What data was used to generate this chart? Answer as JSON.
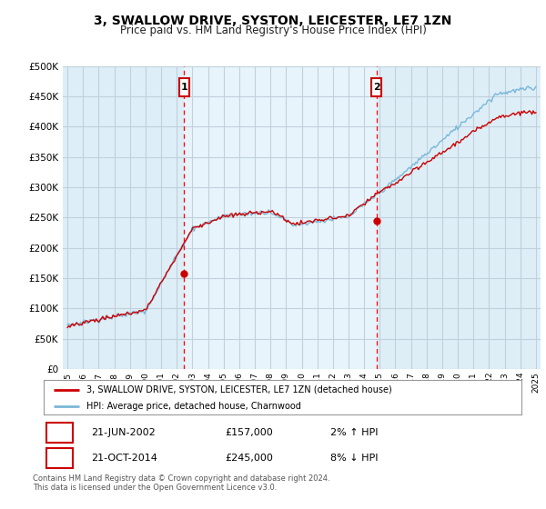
{
  "title": "3, SWALLOW DRIVE, SYSTON, LEICESTER, LE7 1ZN",
  "subtitle": "Price paid vs. HM Land Registry's House Price Index (HPI)",
  "ylabel_ticks": [
    "£0",
    "£50K",
    "£100K",
    "£150K",
    "£200K",
    "£250K",
    "£300K",
    "£350K",
    "£400K",
    "£450K",
    "£500K"
  ],
  "ytick_values": [
    0,
    50000,
    100000,
    150000,
    200000,
    250000,
    300000,
    350000,
    400000,
    450000,
    500000
  ],
  "x_start_year": 1995,
  "x_end_year": 2025,
  "hpi_color": "#7ab8d9",
  "price_color": "#cc0000",
  "vline_color": "red",
  "marker1": {
    "year": 2002.47,
    "value": 157000,
    "label": "1",
    "date": "21-JUN-2002",
    "price": "£157,000",
    "hpi_change": "2% ↑ HPI"
  },
  "marker2": {
    "year": 2014.8,
    "value": 245000,
    "label": "2",
    "date": "21-OCT-2014",
    "price": "£245,000",
    "hpi_change": "8% ↓ HPI"
  },
  "legend_entry1": "3, SWALLOW DRIVE, SYSTON, LEICESTER, LE7 1ZN (detached house)",
  "legend_entry2": "HPI: Average price, detached house, Charnwood",
  "footnote": "Contains HM Land Registry data © Crown copyright and database right 2024.\nThis data is licensed under the Open Government Licence v3.0.",
  "bg_color": "#ddeef7",
  "bg_highlight_color": "#e8f4fc",
  "grid_color": "#c8d8e8",
  "box_color": "#cc0000"
}
